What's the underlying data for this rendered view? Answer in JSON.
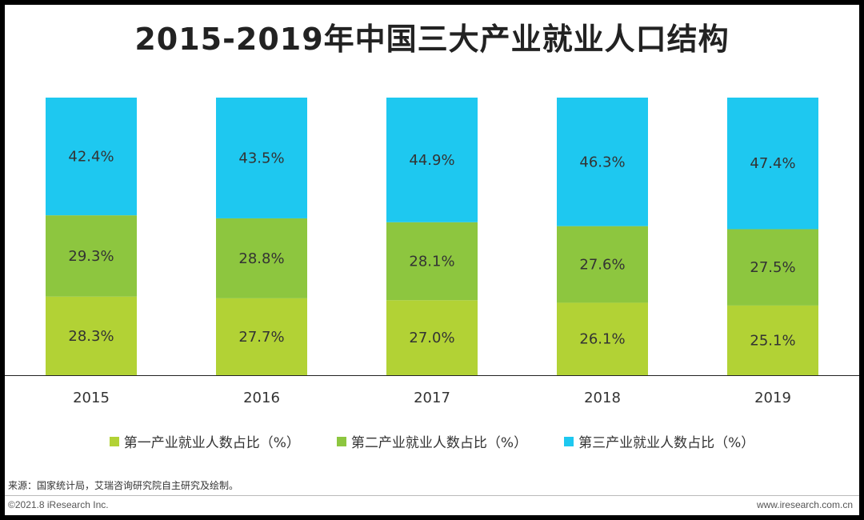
{
  "chart_data": {
    "type": "bar",
    "stacked": true,
    "title": "2015-2019年中国三大产业就业人口结构",
    "categories": [
      "2015",
      "2016",
      "2017",
      "2018",
      "2019"
    ],
    "series": [
      {
        "name": "第一产业就业人数占比（%）",
        "color": "#b2d235",
        "values": [
          28.3,
          27.7,
          27.0,
          26.1,
          25.1
        ],
        "labels": [
          "28.3%",
          "27.7%",
          "27.0%",
          "26.1%",
          "25.1%"
        ]
      },
      {
        "name": "第二产业就业人数占比（%）",
        "color": "#8dc63f",
        "values": [
          29.3,
          28.8,
          28.1,
          27.6,
          27.5
        ],
        "labels": [
          "29.3%",
          "28.8%",
          "28.1%",
          "27.6%",
          "27.5%"
        ]
      },
      {
        "name": "第三产业就业人数占比（%）",
        "color": "#1ec8f0",
        "values": [
          42.4,
          43.5,
          44.9,
          46.3,
          47.4
        ],
        "labels": [
          "42.4%",
          "43.5%",
          "44.9%",
          "46.3%",
          "47.4%"
        ]
      }
    ],
    "ylim": [
      0,
      100
    ],
    "xlabel": "",
    "ylabel": "",
    "legend": "bottom"
  },
  "source": "来源：国家统计局，艾瑞咨询研究院自主研究及绘制。",
  "footer": {
    "copyright": "©2021.8 iResearch Inc.",
    "website": "www.iresearch.com.cn"
  }
}
